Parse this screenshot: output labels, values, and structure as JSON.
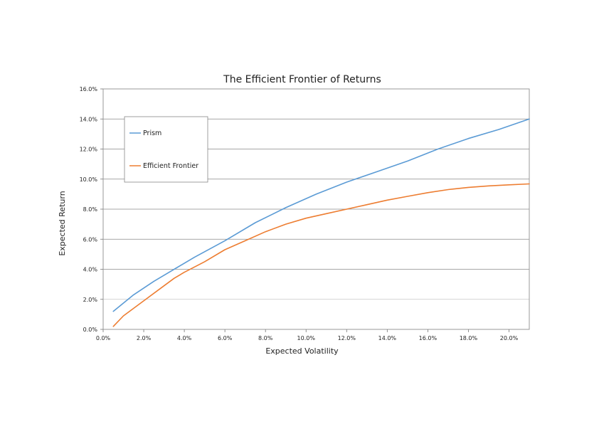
{
  "chart_data": {
    "type": "line",
    "title": "The Efficient Frontier of Returns",
    "xlabel": "Expected Volatility",
    "ylabel": "Expected Return",
    "xlim": [
      0.0,
      21.0
    ],
    "ylim": [
      0.0,
      16.0
    ],
    "x_unit": "%",
    "y_unit": "%",
    "x_ticks": [
      "0.0%",
      "2.0%",
      "4.0%",
      "6.0%",
      "8.0%",
      "10.0%",
      "12.0%",
      "14.0%",
      "16.0%",
      "18.0%",
      "20.0%"
    ],
    "y_ticks": [
      "0.0%",
      "2.0%",
      "4.0%",
      "6.0%",
      "8.0%",
      "10.0%",
      "12.0%",
      "14.0%",
      "16.0%"
    ],
    "grid": "horizontal",
    "legend_position": "upper-left",
    "series": [
      {
        "name": "Prism",
        "color": "#5b9bd5",
        "points": [
          [
            0.5,
            1.2
          ],
          [
            1.5,
            2.3
          ],
          [
            2.5,
            3.2
          ],
          [
            3.5,
            4.0
          ],
          [
            4.5,
            4.8
          ],
          [
            6.0,
            5.9
          ],
          [
            7.5,
            7.1
          ],
          [
            9.0,
            8.1
          ],
          [
            10.5,
            9.0
          ],
          [
            12.0,
            9.8
          ],
          [
            13.5,
            10.5
          ],
          [
            15.0,
            11.2
          ],
          [
            16.5,
            12.0
          ],
          [
            18.0,
            12.7
          ],
          [
            19.5,
            13.3
          ],
          [
            21.0,
            14.0
          ]
        ]
      },
      {
        "name": "Efficient Frontier",
        "color": "#ed7d31",
        "points": [
          [
            0.5,
            0.2
          ],
          [
            1.0,
            0.9
          ],
          [
            2.0,
            1.9
          ],
          [
            3.0,
            2.9
          ],
          [
            3.5,
            3.4
          ],
          [
            4.0,
            3.8
          ],
          [
            5.0,
            4.5
          ],
          [
            6.0,
            5.3
          ],
          [
            7.0,
            5.9
          ],
          [
            8.0,
            6.5
          ],
          [
            9.0,
            7.0
          ],
          [
            10.0,
            7.4
          ],
          [
            11.0,
            7.7
          ],
          [
            12.0,
            8.0
          ],
          [
            13.0,
            8.3
          ],
          [
            14.0,
            8.6
          ],
          [
            15.0,
            8.85
          ],
          [
            16.0,
            9.1
          ],
          [
            17.0,
            9.3
          ],
          [
            18.0,
            9.45
          ],
          [
            19.0,
            9.55
          ],
          [
            20.0,
            9.62
          ],
          [
            21.0,
            9.68
          ]
        ]
      }
    ]
  }
}
